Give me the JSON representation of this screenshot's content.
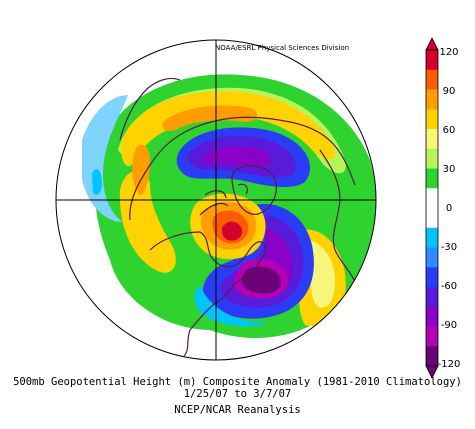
{
  "header": {
    "source": "NOAA/ESRL Physical Sciences Division"
  },
  "colorbar": {
    "labels": [
      "120",
      "90",
      "60",
      "30",
      "0",
      "-30",
      "-60",
      "-90",
      "-120"
    ],
    "colors": [
      "#d6002f",
      "#ff5a00",
      "#ff9e00",
      "#ffd200",
      "#f6f67a",
      "#b6f55a",
      "#2fd32f",
      "#ffffff",
      "#ffffff",
      "#00c4ff",
      "#2c8bff",
      "#2a3cf5",
      "#5a1ad9",
      "#8a00c7",
      "#b300b3",
      "#6b007a"
    ]
  },
  "caption": {
    "line1": "500mb Geopotential Height (m) Composite Anomaly (1981-2010 Climatology)",
    "line2": "1/25/07 to 3/7/07",
    "line3": "NCEP/NCAR Reanalysis"
  },
  "map": {
    "projection": "north-polar-stereographic",
    "colors": {
      "coast": "#5b1a4a",
      "grid": "#000000",
      "green": "#2fd32f",
      "lightgreen": "#b6f55a",
      "yellow": "#ffd200",
      "paleyellow": "#f6f67a",
      "orange": "#ff9e00",
      "red": "#ff5a00",
      "darkred": "#d6002f",
      "cyan": "#00c4ff",
      "lightblue": "#7fd4ff",
      "blue": "#2a3cf5",
      "violet": "#5a1ad9",
      "purple": "#8a00c7",
      "magenta": "#b300b3",
      "darkpurple": "#6b007a"
    }
  }
}
